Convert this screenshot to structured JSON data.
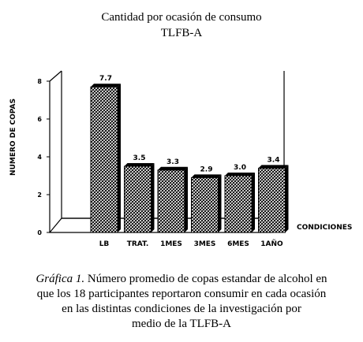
{
  "header": {
    "title": "Cantidad por ocasión de consumo",
    "subtitle": "TLFB-A"
  },
  "chart_data": {
    "type": "bar",
    "categories": [
      "LB",
      "TRAT.",
      "1MES",
      "3MES",
      "6MES",
      "1AÑO"
    ],
    "values": [
      7.7,
      3.5,
      3.3,
      2.9,
      3.0,
      3.4
    ],
    "data_labels": [
      "7.7",
      "3.5",
      "3.3",
      "2.9",
      "3.0",
      "3.4"
    ],
    "ylabel": "NUMERO DE COPAS",
    "xlabel": "CONDICIONES",
    "ylim": [
      0,
      8
    ],
    "yticks": [
      0,
      2,
      4,
      6,
      8
    ],
    "grid": false,
    "legend": "none",
    "colors": {
      "bar_pattern": "#000000",
      "bar_face": "#ffffff",
      "axis": "#000000"
    }
  },
  "caption": {
    "label": "Gráfica 1.",
    "lines": [
      "Número promedio de copas estandar de alcohol en",
      "que los 18 participantes reportaron consumir en cada ocasión",
      "en las distintas condiciones de la investigación por",
      "medio de la TLFB-A"
    ]
  }
}
